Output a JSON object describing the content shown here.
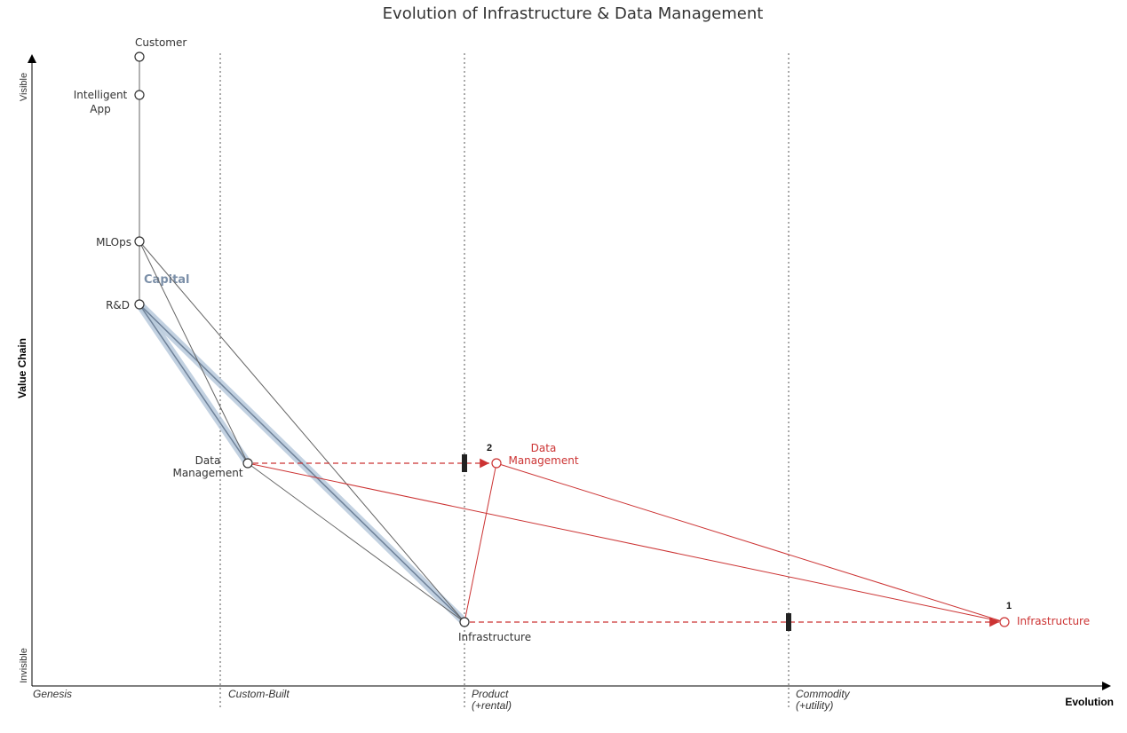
{
  "title": "Evolution of Infrastructure & Data Management",
  "axes": {
    "y_label": "Value Chain",
    "y_top": "Visible",
    "y_bottom": "Invisible",
    "x_label": "Evolution"
  },
  "stages": [
    {
      "line1": "Genesis",
      "line2": ""
    },
    {
      "line1": "Custom-Built",
      "line2": ""
    },
    {
      "line1": "Product",
      "line2": "(+rental)"
    },
    {
      "line1": "Commodity",
      "line2": "(+utility)"
    }
  ],
  "components": {
    "customer": {
      "line1": "Customer",
      "line2": ""
    },
    "app": {
      "line1": "Intelligent",
      "line2": "App"
    },
    "mlops": {
      "line1": "MLOps",
      "line2": ""
    },
    "rd": {
      "line1": "R&D",
      "line2": ""
    },
    "data": {
      "line1": "Data",
      "line2": "Management"
    },
    "infra": {
      "line1": "Infrastructure",
      "line2": ""
    }
  },
  "evolved": {
    "data": {
      "number": "2",
      "line1": "Data",
      "line2": "Management"
    },
    "infra": {
      "number": "1",
      "line1": "Infrastructure",
      "line2": ""
    }
  },
  "pipeline_label": "Capital",
  "colors": {
    "axis": "#000000",
    "link": "#666666",
    "evolution": "#cc3333",
    "pipeline_halo": "#b8cadc",
    "pipeline_core": "#6e8198"
  }
}
